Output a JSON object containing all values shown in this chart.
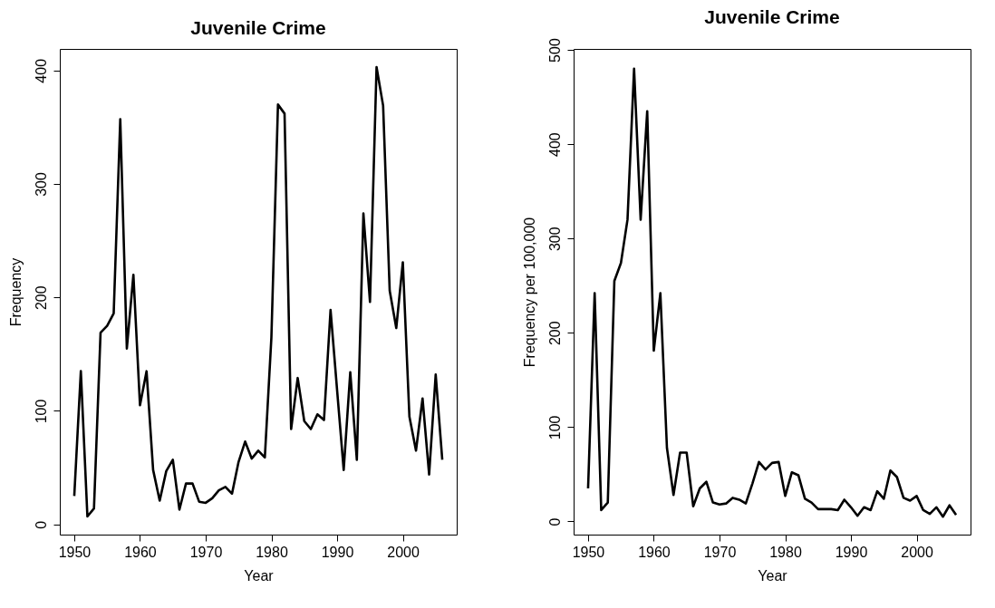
{
  "chart_data": [
    {
      "type": "line",
      "title": "Juvenile Crime",
      "xlabel": "Year",
      "ylabel": "Frequency",
      "x": [
        1950,
        1951,
        1952,
        1953,
        1954,
        1955,
        1956,
        1957,
        1958,
        1959,
        1960,
        1961,
        1962,
        1963,
        1964,
        1965,
        1966,
        1967,
        1968,
        1969,
        1970,
        1971,
        1972,
        1973,
        1974,
        1975,
        1976,
        1977,
        1978,
        1979,
        1980,
        1981,
        1982,
        1983,
        1984,
        1985,
        1986,
        1987,
        1988,
        1989,
        1990,
        1991,
        1992,
        1993,
        1994,
        1995,
        1996,
        1997,
        1998,
        1999,
        2000,
        2001,
        2002,
        2003,
        2004,
        2005,
        2006
      ],
      "series": [
        {
          "color": "#000000",
          "values": [
            25,
            135,
            7,
            14,
            169,
            175,
            186,
            357,
            155,
            220,
            105,
            135,
            48,
            21,
            47,
            57,
            13,
            36,
            36,
            20,
            19,
            23,
            30,
            33,
            27,
            55,
            73,
            58,
            65,
            59,
            165,
            370,
            362,
            84,
            129,
            91,
            84,
            97,
            92,
            189,
            118,
            48,
            134,
            57,
            274,
            196,
            403,
            369,
            206,
            173,
            231,
            95,
            65,
            111,
            44,
            132,
            57
          ]
        }
      ],
      "xlim": [
        1947.8,
        2008.2
      ],
      "ylim": [
        -9,
        419
      ],
      "xticks": [
        1950,
        1960,
        1970,
        1980,
        1990,
        2000
      ],
      "yticks": [
        0,
        100,
        200,
        300,
        400
      ]
    },
    {
      "type": "line",
      "title": "Juvenile Crime",
      "xlabel": "Year",
      "ylabel": "Frequency per 100,000",
      "x": [
        1950,
        1951,
        1952,
        1953,
        1954,
        1955,
        1956,
        1957,
        1958,
        1959,
        1960,
        1961,
        1962,
        1963,
        1964,
        1965,
        1966,
        1967,
        1968,
        1969,
        1970,
        1971,
        1972,
        1973,
        1974,
        1975,
        1976,
        1977,
        1978,
        1979,
        1980,
        1981,
        1982,
        1983,
        1984,
        1985,
        1986,
        1987,
        1988,
        1989,
        1990,
        1991,
        1992,
        1993,
        1994,
        1995,
        1996,
        1997,
        1998,
        1999,
        2000,
        2001,
        2002,
        2003,
        2004,
        2005,
        2006
      ],
      "series": [
        {
          "color": "#000000",
          "values": [
            35,
            242,
            12,
            20,
            255,
            274,
            320,
            480,
            320,
            435,
            181,
            242,
            78,
            28,
            73,
            73,
            16,
            35,
            42,
            20,
            18,
            19,
            25,
            23,
            19,
            40,
            63,
            55,
            62,
            63,
            27,
            52,
            49,
            24,
            20,
            13,
            13,
            13,
            12,
            23,
            15,
            6,
            15,
            12,
            32,
            24,
            54,
            47,
            25,
            22,
            27,
            12,
            8,
            15,
            5,
            17,
            7
          ]
        }
      ],
      "xlim": [
        1947.8,
        2008.2
      ],
      "ylim": [
        -14,
        501
      ],
      "xticks": [
        1950,
        1960,
        1970,
        1980,
        1990,
        2000
      ],
      "yticks": [
        0,
        100,
        200,
        300,
        400,
        500
      ]
    }
  ]
}
